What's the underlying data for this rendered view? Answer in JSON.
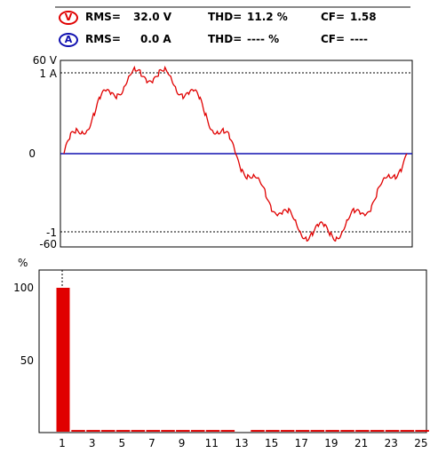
{
  "voltage": {
    "badge": "V",
    "rms_label": "RMS=",
    "rms_value": "32.0 V",
    "thd_label": "THD=",
    "thd_value": "11.2 %",
    "cf_label": "CF=",
    "cf_value": "1.58",
    "color": "#e00000"
  },
  "current": {
    "badge": "A",
    "rms_label": "RMS=",
    "rms_value": "0.0 A",
    "thd_label": "THD=",
    "thd_value": "---- %",
    "cf_label": "CF=",
    "cf_value": "----",
    "color": "#1010b0"
  },
  "waveform": {
    "y_labels": {
      "top_voltage": "60 V",
      "top_current": "1 A",
      "zero": "0",
      "bottom_current": "-1",
      "bottom_voltage": "-60"
    },
    "voltage_peak": 51,
    "voltage_range": [
      -60,
      60
    ],
    "harmonic_ripple_order": 11,
    "harmonic_ripple_amplitude": 0.11
  },
  "chart_data": {
    "type": "bar",
    "ylabel": "%",
    "y_ticks": [
      "100",
      "50"
    ],
    "ylim": [
      0,
      110
    ],
    "categories": [
      "1",
      "2",
      "3",
      "4",
      "5",
      "6",
      "7",
      "8",
      "9",
      "10",
      "11",
      "12",
      "13",
      "14",
      "15",
      "16",
      "17",
      "18",
      "19",
      "20",
      "21",
      "22",
      "23",
      "24",
      "25"
    ],
    "x_tick_labels": [
      "1",
      "3",
      "5",
      "7",
      "9",
      "11",
      "13",
      "15",
      "17",
      "19",
      "21",
      "23",
      "25"
    ],
    "values": [
      100,
      1.2,
      1.2,
      1.2,
      1.2,
      1.2,
      1.2,
      1.2,
      1.2,
      1.2,
      1.2,
      1.2,
      0,
      1.2,
      1.2,
      1.2,
      1.2,
      1.2,
      1.2,
      1.2,
      1.2,
      1.2,
      1.2,
      1.2,
      1.2
    ],
    "bar_color": "#e00000"
  }
}
